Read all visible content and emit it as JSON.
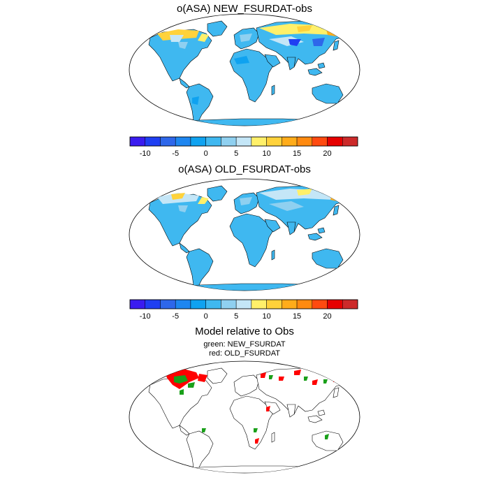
{
  "panel1": {
    "title": "o(ASA) NEW_FSURDAT-obs"
  },
  "panel2": {
    "title": "o(ASA) OLD_FSURDAT-obs"
  },
  "panel3": {
    "title": "Model relative to Obs",
    "legend_line1": "green: NEW_FSURDAT",
    "legend_line2": "red: OLD_FSURDAT"
  },
  "colorbar": {
    "colors": [
      "#3a1cf0",
      "#1f3ff2",
      "#2e67ea",
      "#1e86f0",
      "#0fa2f0",
      "#3fb8f0",
      "#8fd0f0",
      "#c4e6f7",
      "#fff06a",
      "#ffd23b",
      "#ffac1a",
      "#ff8a10",
      "#ff4a10",
      "#e60000",
      "#cc2a2a"
    ],
    "tick_labels": [
      "-10",
      "-5",
      "0",
      "5",
      "10",
      "15",
      "20"
    ]
  },
  "colors": {
    "ocean": "#ffffff",
    "land_base": "#3fb8f0",
    "coast": "#000000",
    "better_new": "#1aa01a",
    "better_old": "#ff0000"
  }
}
